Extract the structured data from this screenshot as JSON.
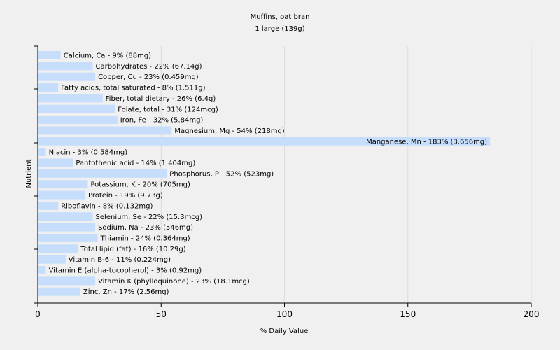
{
  "chart_data": {
    "type": "bar",
    "orientation": "horizontal",
    "title": "Muffins, oat bran",
    "subtitle": "1 large (139g)",
    "xlabel": "% Daily Value",
    "ylabel": "Nutrient",
    "xlim": [
      0,
      200
    ],
    "xticks": [
      0,
      50,
      100,
      150,
      200
    ],
    "grid": "vertical",
    "bar_color": "#c6defc",
    "categories": [
      "Calcium, Ca",
      "Carbohydrates",
      "Copper, Cu",
      "Fatty acids, total saturated",
      "Fiber, total dietary",
      "Folate, total",
      "Iron, Fe",
      "Magnesium, Mg",
      "Manganese, Mn",
      "Niacin",
      "Pantothenic acid",
      "Phosphorus, P",
      "Potassium, K",
      "Protein",
      "Riboflavin",
      "Selenium, Se",
      "Sodium, Na",
      "Thiamin",
      "Total lipid (fat)",
      "Vitamin B-6",
      "Vitamin E (alpha-tocopherol)",
      "Vitamin K (phylloquinone)",
      "Zinc, Zn"
    ],
    "values": [
      9,
      22,
      23,
      8,
      26,
      31,
      32,
      54,
      183,
      3,
      14,
      52,
      20,
      19,
      8,
      22,
      23,
      24,
      16,
      11,
      3,
      23,
      17
    ],
    "labels": [
      "Calcium, Ca - 9% (88mg)",
      "Carbohydrates - 22% (67.14g)",
      "Copper, Cu - 23% (0.459mg)",
      "Fatty acids, total saturated - 8% (1.511g)",
      "Fiber, total dietary - 26% (6.4g)",
      "Folate, total - 31% (124mcg)",
      "Iron, Fe - 32% (5.84mg)",
      "Magnesium, Mg - 54% (218mg)",
      "Manganese, Mn - 183% (3.656mg)",
      "Niacin - 3% (0.584mg)",
      "Pantothenic acid - 14% (1.404mg)",
      "Phosphorus, P - 52% (523mg)",
      "Potassium, K - 20% (705mg)",
      "Protein - 19% (9.73g)",
      "Riboflavin - 8% (0.132mg)",
      "Selenium, Se - 22% (15.3mcg)",
      "Sodium, Na - 23% (546mg)",
      "Thiamin - 24% (0.364mg)",
      "Total lipid (fat) - 16% (10.29g)",
      "Vitamin B-6 - 11% (0.224mg)",
      "Vitamin E (alpha-tocopherol) - 3% (0.92mg)",
      "Vitamin K (phylloquinone) - 23% (18.1mcg)",
      "Zinc, Zn - 17% (2.56mg)"
    ]
  }
}
